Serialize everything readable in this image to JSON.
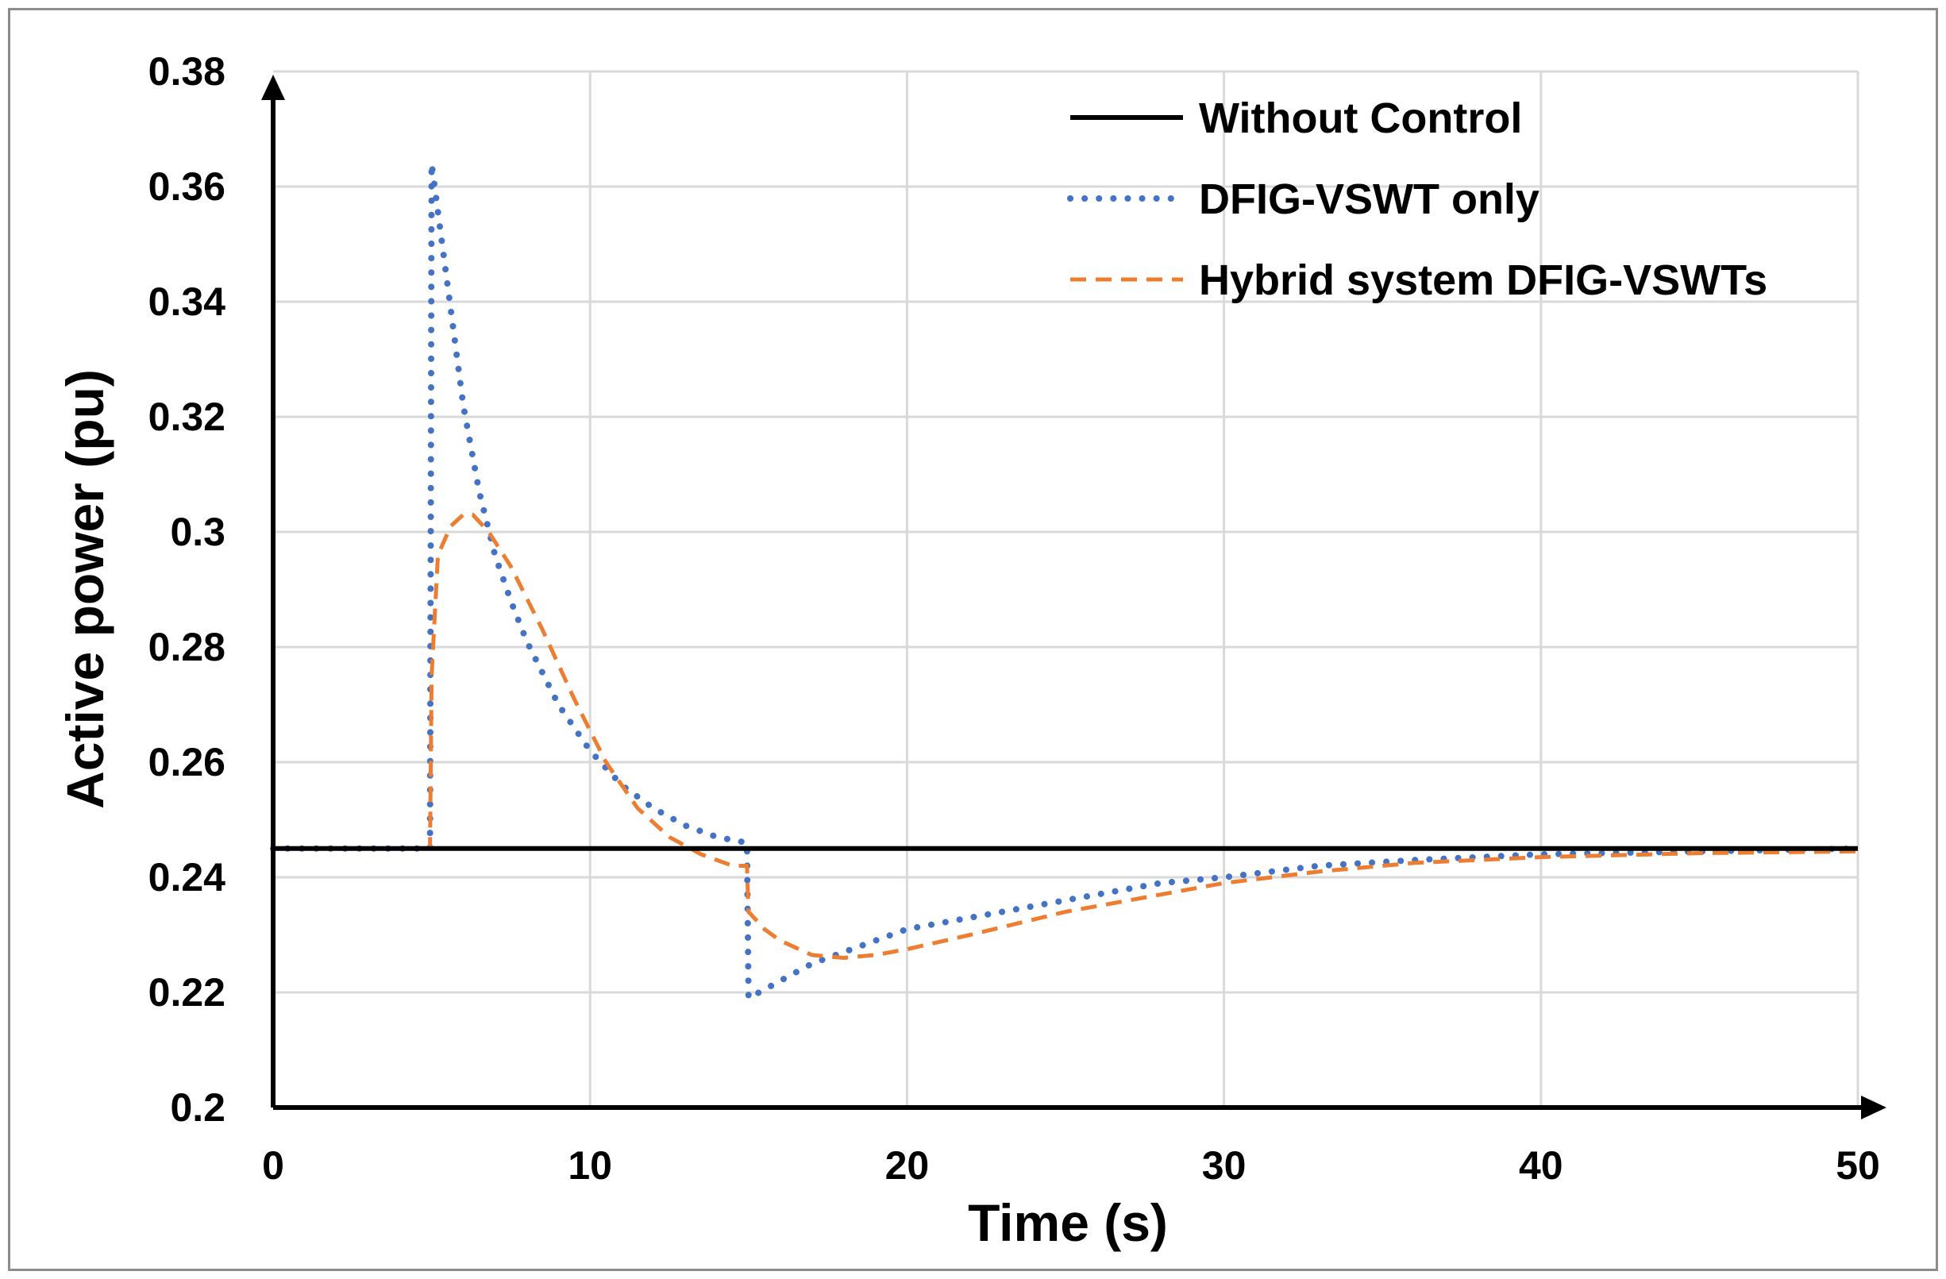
{
  "chart_data": {
    "type": "line",
    "title": "",
    "xlabel": "Time (s)",
    "ylabel": "Active power (pu)",
    "xlim": [
      0,
      50
    ],
    "ylim": [
      0.2,
      0.38
    ],
    "xticks": [
      0,
      10,
      20,
      30,
      40,
      50
    ],
    "xtick_labels": [
      "0",
      "10",
      "20",
      "30",
      "40",
      "50"
    ],
    "yticks": [
      0.2,
      0.22,
      0.24,
      0.26,
      0.28,
      0.3,
      0.32,
      0.34,
      0.36,
      0.38
    ],
    "ytick_labels": [
      "0.2",
      "0.22",
      "0.24",
      "0.26",
      "0.28",
      "0.3",
      "0.32",
      "0.34",
      "0.36",
      "0.38"
    ],
    "grid": true,
    "legend_position": "top-right",
    "series": [
      {
        "name": "Without Control",
        "color": "#000000",
        "style": "solid",
        "x": [
          0,
          50
        ],
        "y": [
          0.245,
          0.245
        ]
      },
      {
        "name": "DFIG-VSWT only",
        "color": "#4472c4",
        "style": "dotted",
        "x": [
          0,
          4.95,
          5.0,
          5.5,
          6.0,
          6.5,
          7.0,
          7.5,
          8.0,
          9.0,
          10.0,
          11.0,
          12.0,
          13.0,
          14.0,
          14.95,
          15.0,
          16.0,
          17.0,
          18.0,
          19.0,
          20.0,
          22.0,
          25.0,
          28.0,
          30.0,
          33.0,
          36.0,
          40.0,
          45.0,
          50.0
        ],
        "y": [
          0.245,
          0.245,
          0.364,
          0.343,
          0.322,
          0.307,
          0.296,
          0.288,
          0.281,
          0.27,
          0.262,
          0.256,
          0.252,
          0.249,
          0.247,
          0.246,
          0.219,
          0.222,
          0.225,
          0.227,
          0.229,
          0.231,
          0.233,
          0.236,
          0.239,
          0.24,
          0.242,
          0.243,
          0.244,
          0.2445,
          0.245
        ]
      },
      {
        "name": "Hybrid system DFIG-VSWTs",
        "color": "#ed7d31",
        "style": "dashed",
        "x": [
          0,
          4.95,
          5.0,
          5.2,
          5.6,
          6.0,
          6.3,
          6.8,
          7.5,
          8.5,
          9.5,
          10.5,
          11.5,
          12.5,
          13.5,
          14.5,
          14.95,
          15.0,
          15.5,
          16.0,
          17.0,
          18.0,
          19.0,
          20.0,
          22.0,
          25.0,
          28.0,
          30.0,
          33.0,
          36.0,
          40.0,
          45.0,
          50.0
        ],
        "y": [
          0.245,
          0.245,
          0.275,
          0.296,
          0.301,
          0.303,
          0.303,
          0.3,
          0.294,
          0.283,
          0.271,
          0.26,
          0.252,
          0.247,
          0.244,
          0.242,
          0.242,
          0.234,
          0.231,
          0.229,
          0.2265,
          0.226,
          0.2265,
          0.2275,
          0.23,
          0.234,
          0.237,
          0.239,
          0.241,
          0.2425,
          0.2435,
          0.2442,
          0.2445
        ]
      }
    ]
  }
}
